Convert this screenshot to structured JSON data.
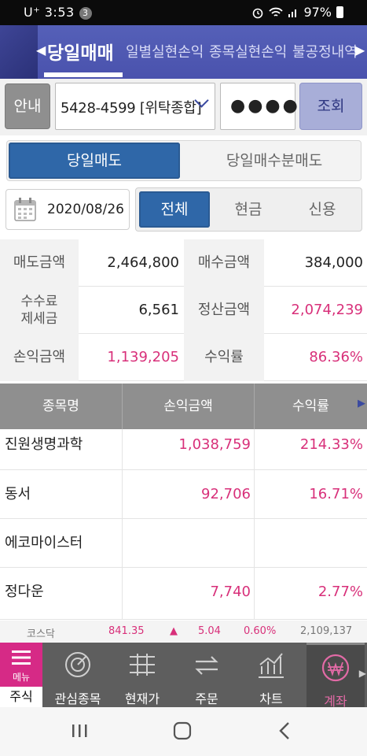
{
  "status": {
    "carrier": "U⁺",
    "time": "3:53",
    "notif_count": "3",
    "battery": "97%"
  },
  "topnav": {
    "active": "당일매매",
    "tabs": [
      "일별실현손익",
      "종목실현손익",
      "불공정내역"
    ]
  },
  "account": {
    "guide_label": "안내",
    "account": "5428-4599 [위탁종합]",
    "password_mask": "●●●●",
    "query_label": "조회"
  },
  "segment1": {
    "options": [
      "당일매도",
      "당일매수분매도"
    ],
    "selected": "당일매도"
  },
  "date": "2020/08/26",
  "segment2": {
    "options": [
      "전체",
      "현금",
      "신용"
    ],
    "selected": "전체"
  },
  "summary": {
    "sell_amount_label": "매도금액",
    "sell_amount": "2,464,800",
    "buy_amount_label": "매수금액",
    "buy_amount": "384,000",
    "fee_label_1": "수수료",
    "fee_label_2": "제세금",
    "fee": "6,561",
    "settle_label": "정산금액",
    "settle": "2,074,239",
    "pl_label": "손익금액",
    "pl": "1,139,205",
    "rate_label": "수익률",
    "rate": "86.36%"
  },
  "table": {
    "headers": [
      "종목명",
      "손익금액",
      "수익률"
    ],
    "rows": [
      {
        "name": "진원생명과학",
        "pl": "1,038,759",
        "rate": "214.33%"
      },
      {
        "name": "동서",
        "pl": "92,706",
        "rate": "16.71%"
      },
      {
        "name": "에코마이스터",
        "pl": "",
        "rate": ""
      },
      {
        "name": "정다운",
        "pl": "7,740",
        "rate": "2.77%"
      }
    ]
  },
  "ticker": {
    "index": "코스닥",
    "value": "841.35",
    "arrow": "▲",
    "change": "5.04",
    "pct": "0.60%",
    "volume": "2,109,137"
  },
  "bottom_tabs": {
    "menu": "메뉴",
    "stock": "주식",
    "items": [
      "관심종목",
      "현재가",
      "주문",
      "차트",
      "계좌"
    ],
    "active": "계좌"
  },
  "colors": {
    "accent": "#4a52ad",
    "pink": "#d8307a",
    "segment_on": "#2f67a8"
  }
}
